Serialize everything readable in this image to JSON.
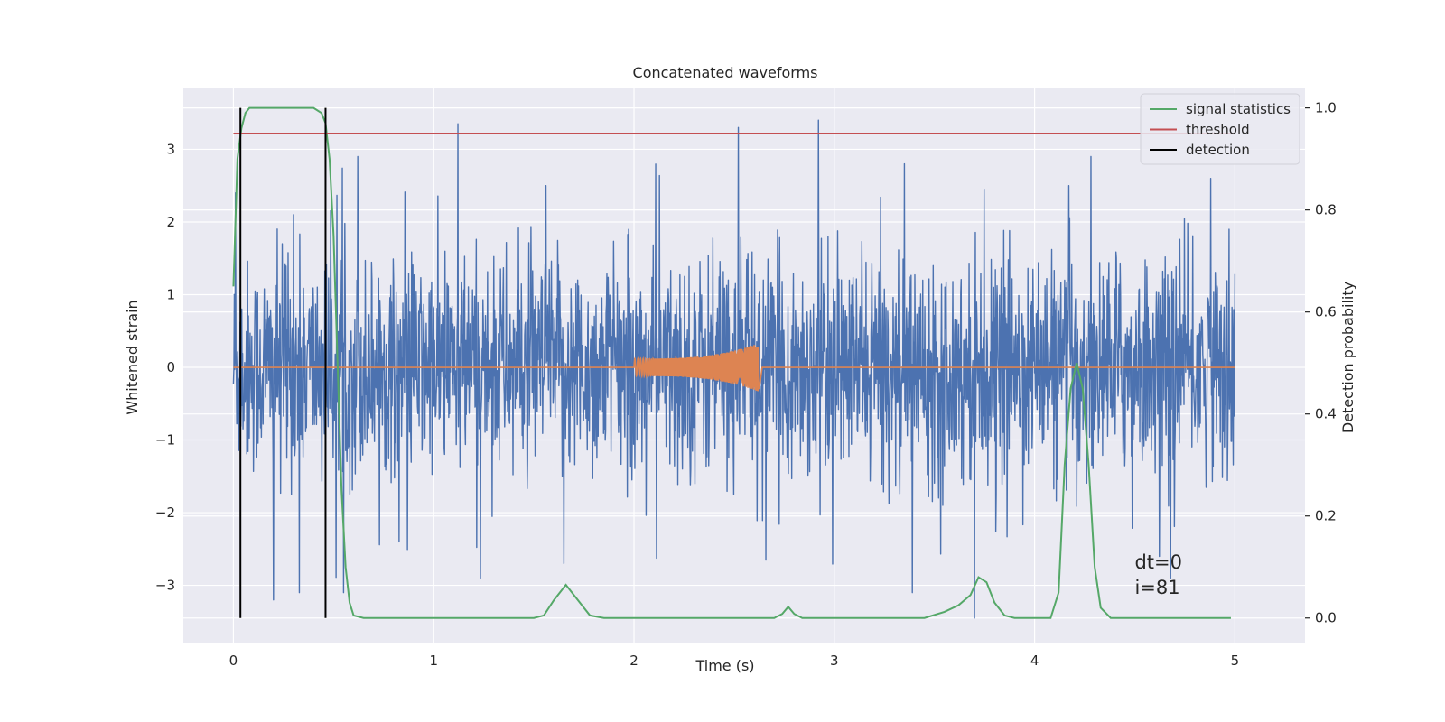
{
  "chart_data": {
    "type": "line",
    "title": "Concatenated waveforms",
    "xlabel": "Time (s)",
    "ylabel": "Whitened strain",
    "y2label": "Detection probability",
    "xlim": [
      -0.25,
      5.35
    ],
    "ylim": [
      -3.8,
      3.85
    ],
    "y2lim": [
      -0.05,
      1.04
    ],
    "xticks": [
      0,
      1,
      2,
      3,
      4,
      5
    ],
    "yticks": [
      -3,
      -2,
      -1,
      0,
      1,
      2,
      3
    ],
    "y2ticks": [
      0.0,
      0.2,
      0.4,
      0.6,
      0.8,
      1.0
    ],
    "xtick_labels": [
      "0",
      "1",
      "2",
      "3",
      "4",
      "5"
    ],
    "ytick_labels": [
      "−3",
      "−2",
      "−1",
      "0",
      "1",
      "2",
      "3"
    ],
    "y2tick_labels": [
      "0.0",
      "0.2",
      "0.4",
      "0.6",
      "0.8",
      "1.0"
    ],
    "grid": true,
    "legend_position": "top-right",
    "series": [
      {
        "kind": "noise",
        "axis": "left",
        "color": "#4c72b0",
        "x_range": [
          0,
          5
        ],
        "typical_envelope": 1.6,
        "peak_values": [
          [
            0.01,
            2.4
          ],
          [
            0.3,
            2.1
          ],
          [
            0.62,
            2.9
          ],
          [
            1.12,
            3.35
          ],
          [
            1.56,
            2.5
          ],
          [
            2.52,
            3.3
          ],
          [
            2.92,
            3.4
          ],
          [
            3.35,
            2.8
          ],
          [
            4.17,
            2.5
          ],
          [
            4.88,
            2.6
          ],
          [
            4.97,
            1.9
          ],
          [
            0.2,
            -3.2
          ],
          [
            0.33,
            -3.1
          ],
          [
            0.55,
            -3.1
          ],
          [
            1.65,
            -2.7
          ],
          [
            3.39,
            -3.1
          ],
          [
            3.7,
            -3.45
          ],
          [
            4.68,
            -2.9
          ]
        ]
      },
      {
        "kind": "chirp",
        "axis": "left",
        "color": "#dd8452",
        "x_range": [
          0,
          5
        ],
        "active_range": [
          2.0,
          2.62
        ],
        "amplitude_start": 0.12,
        "amplitude_peak": 0.33
      },
      {
        "name": "signal statistics",
        "axis": "right",
        "color": "#55a868",
        "points": [
          [
            0.0,
            0.65
          ],
          [
            0.02,
            0.9
          ],
          [
            0.04,
            0.96
          ],
          [
            0.06,
            0.99
          ],
          [
            0.08,
            1.0
          ],
          [
            0.1,
            1.0
          ],
          [
            0.35,
            1.0
          ],
          [
            0.4,
            1.0
          ],
          [
            0.44,
            0.99
          ],
          [
            0.46,
            0.97
          ],
          [
            0.48,
            0.9
          ],
          [
            0.5,
            0.75
          ],
          [
            0.52,
            0.5
          ],
          [
            0.54,
            0.25
          ],
          [
            0.56,
            0.1
          ],
          [
            0.58,
            0.03
          ],
          [
            0.6,
            0.005
          ],
          [
            0.65,
            0.0
          ],
          [
            1.5,
            0.0
          ],
          [
            1.55,
            0.005
          ],
          [
            1.6,
            0.035
          ],
          [
            1.66,
            0.065
          ],
          [
            1.72,
            0.035
          ],
          [
            1.78,
            0.005
          ],
          [
            1.85,
            0.0
          ],
          [
            2.7,
            0.0
          ],
          [
            2.74,
            0.008
          ],
          [
            2.77,
            0.022
          ],
          [
            2.8,
            0.008
          ],
          [
            2.84,
            0.0
          ],
          [
            3.45,
            0.0
          ],
          [
            3.55,
            0.012
          ],
          [
            3.62,
            0.025
          ],
          [
            3.68,
            0.045
          ],
          [
            3.72,
            0.08
          ],
          [
            3.76,
            0.07
          ],
          [
            3.8,
            0.03
          ],
          [
            3.85,
            0.005
          ],
          [
            3.9,
            0.0
          ],
          [
            4.08,
            0.0
          ],
          [
            4.12,
            0.05
          ],
          [
            4.15,
            0.3
          ],
          [
            4.18,
            0.45
          ],
          [
            4.21,
            0.5
          ],
          [
            4.24,
            0.45
          ],
          [
            4.27,
            0.3
          ],
          [
            4.3,
            0.1
          ],
          [
            4.33,
            0.02
          ],
          [
            4.38,
            0.0
          ],
          [
            4.98,
            0.0
          ]
        ]
      },
      {
        "name": "threshold",
        "axis": "right",
        "color": "#c44e52",
        "value": 0.95,
        "x_range": [
          0,
          5
        ]
      },
      {
        "name": "detection",
        "axis": "right",
        "color": "#000000",
        "x_values": [
          0.035,
          0.46
        ],
        "y_range": [
          0.0,
          1.0
        ]
      }
    ],
    "annotations": [
      {
        "text": "dt=0",
        "x": 4.5,
        "y": -2.77
      },
      {
        "text": "i=81",
        "x": 4.5,
        "y": -3.12
      }
    ]
  }
}
